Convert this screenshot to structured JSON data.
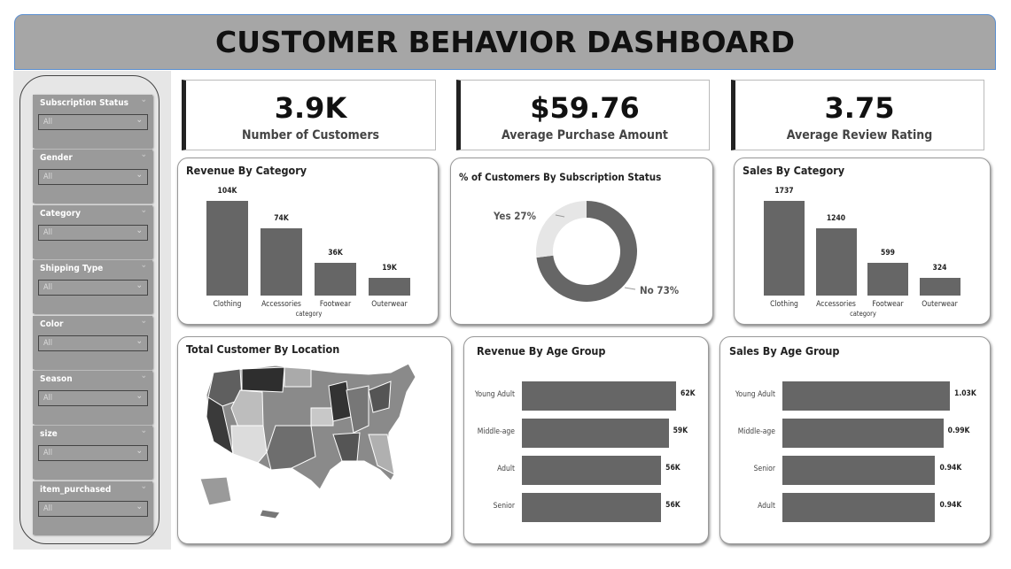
{
  "header": {
    "title": "CUSTOMER BEHAVIOR DASHBOARD"
  },
  "slicers": [
    {
      "label": "Subscription Status",
      "value": "All"
    },
    {
      "label": "Gender",
      "value": "All"
    },
    {
      "label": "Category",
      "value": "All"
    },
    {
      "label": "Shipping Type",
      "value": "All"
    },
    {
      "label": "Color",
      "value": "All"
    },
    {
      "label": "Season",
      "value": "All"
    },
    {
      "label": "size",
      "value": "All"
    },
    {
      "label": "item_purchased",
      "value": "All"
    }
  ],
  "kpis": [
    {
      "value": "3.9K",
      "label": "Number of Customers"
    },
    {
      "value": "$59.76",
      "label": "Average Purchase Amount"
    },
    {
      "value": "3.75",
      "label": "Average Review Rating"
    }
  ],
  "colors": {
    "bar": "#666666",
    "donut_no": "#666666",
    "donut_yes": "#e6e6e6",
    "header": "#a6a6a6"
  },
  "chart_data": [
    {
      "id": "revenue_by_category",
      "type": "bar",
      "title": "Revenue By Category",
      "xlabel": "category",
      "categories": [
        "Clothing",
        "Accessories",
        "Footwear",
        "Outerwear"
      ],
      "values": [
        104,
        74,
        36,
        19
      ],
      "labels": [
        "104K",
        "74K",
        "36K",
        "19K"
      ]
    },
    {
      "id": "subscription",
      "type": "pie",
      "title": "% of Customers By Subscription Status",
      "categories": [
        "Yes",
        "No"
      ],
      "values": [
        27,
        73
      ],
      "labels": [
        "Yes 27%",
        "No 73%"
      ]
    },
    {
      "id": "sales_by_category",
      "type": "bar",
      "title": "Sales By Category",
      "xlabel": "category",
      "categories": [
        "Clothing",
        "Accessories",
        "Footwear",
        "Outerwear"
      ],
      "values": [
        1737,
        1240,
        599,
        324
      ],
      "labels": [
        "1737",
        "1240",
        "599",
        "324"
      ]
    },
    {
      "id": "customer_by_location",
      "type": "map",
      "title": "Total Customer By Location"
    },
    {
      "id": "revenue_by_age",
      "type": "bar",
      "orientation": "horizontal",
      "title": "Revenue By Age Group",
      "categories": [
        "Young Adult",
        "Middle-age",
        "Adult",
        "Senior"
      ],
      "values": [
        62,
        59,
        56,
        56
      ],
      "labels": [
        "62K",
        "59K",
        "56K",
        "56K"
      ]
    },
    {
      "id": "sales_by_age",
      "type": "bar",
      "orientation": "horizontal",
      "title": "Sales By Age Group",
      "categories": [
        "Young Adult",
        "Middle-age",
        "Senior",
        "Adult"
      ],
      "values": [
        1.03,
        0.99,
        0.94,
        0.94
      ],
      "labels": [
        "1.03K",
        "0.99K",
        "0.94K",
        "0.94K"
      ]
    }
  ]
}
